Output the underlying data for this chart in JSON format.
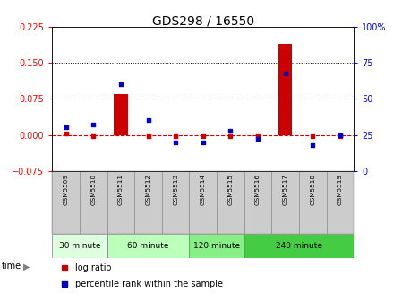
{
  "title": "GDS298 / 16550",
  "samples": [
    "GSM5509",
    "GSM5510",
    "GSM5511",
    "GSM5512",
    "GSM5513",
    "GSM5514",
    "GSM5515",
    "GSM5516",
    "GSM5517",
    "GSM5518",
    "GSM5519"
  ],
  "log_ratio": [
    0.002,
    -0.002,
    0.085,
    -0.002,
    -0.002,
    -0.002,
    -0.002,
    -0.002,
    0.19,
    -0.002,
    -0.002
  ],
  "percentile": [
    30,
    32,
    60,
    35,
    20,
    20,
    28,
    22,
    68,
    18,
    25
  ],
  "ylim_left": [
    -0.075,
    0.225
  ],
  "ylim_right": [
    0,
    100
  ],
  "yticks_left": [
    -0.075,
    0,
    0.075,
    0.15,
    0.225
  ],
  "yticks_right": [
    0,
    25,
    50,
    75,
    100
  ],
  "hlines": [
    0.075,
    0.15
  ],
  "groups": [
    {
      "label": "30 minute",
      "start": 0,
      "end": 1,
      "color": "#ddffdd"
    },
    {
      "label": "60 minute",
      "start": 2,
      "end": 4,
      "color": "#bbffbb"
    },
    {
      "label": "120 minute",
      "start": 5,
      "end": 6,
      "color": "#88ee88"
    },
    {
      "label": "240 minute",
      "start": 7,
      "end": 10,
      "color": "#44cc44"
    }
  ],
  "bar_color": "#cc0000",
  "dot_color": "#0000cc",
  "dashed_line_color": "#cc0000",
  "title_fontsize": 10,
  "tick_fontsize": 7,
  "bg_color": "#ffffff",
  "plot_bg": "#ffffff",
  "sample_box_color": "#cccccc"
}
